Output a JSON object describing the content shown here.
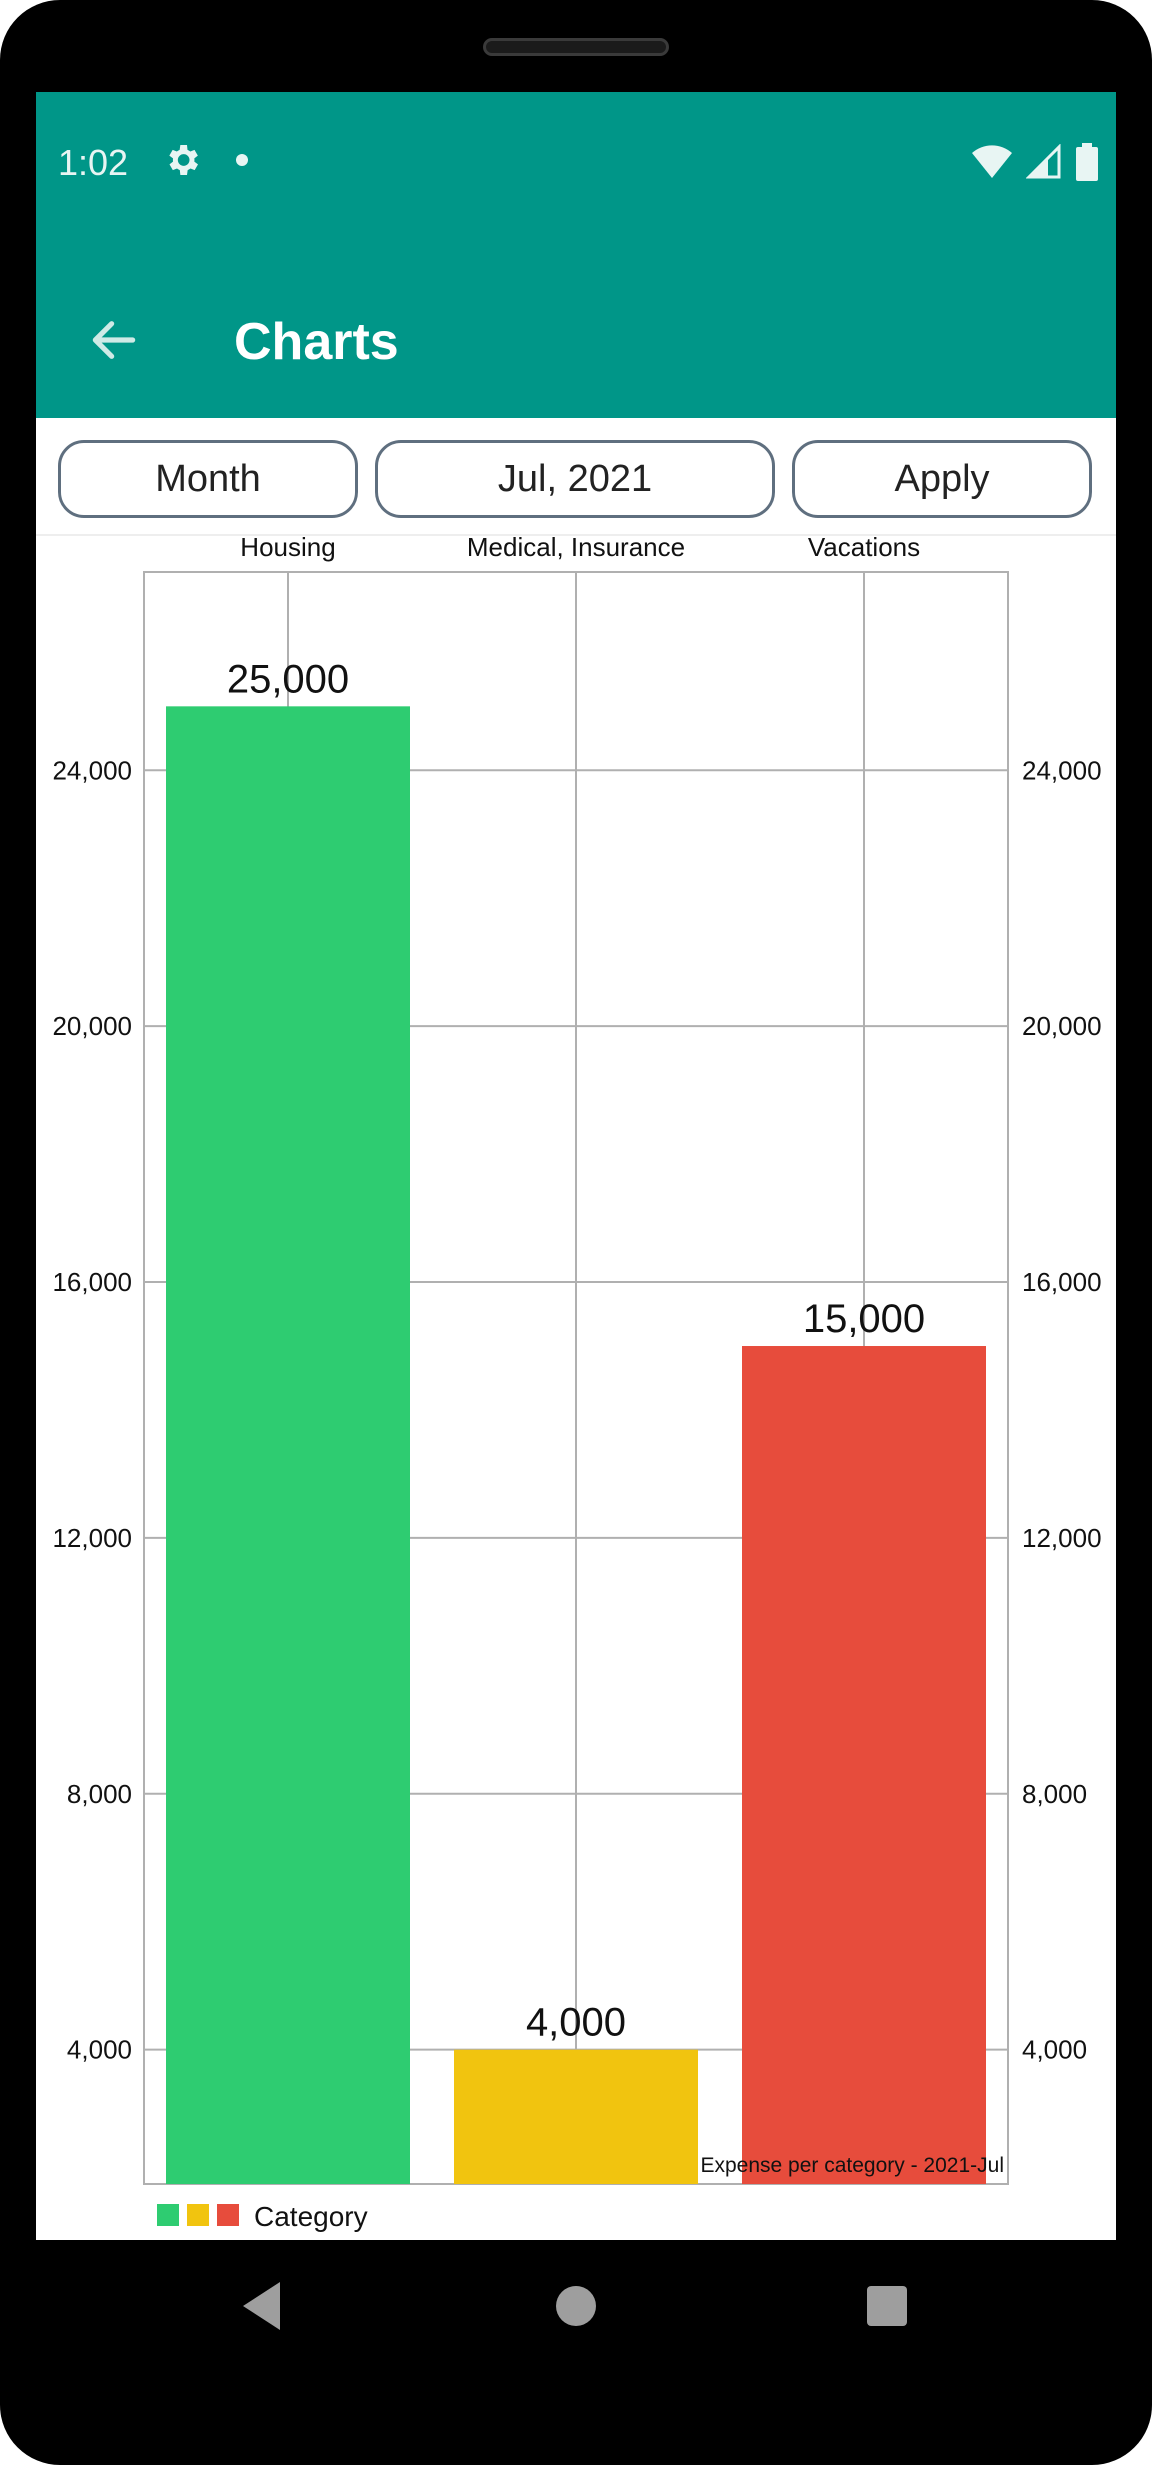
{
  "status_bar": {
    "time": "1:02",
    "icons": [
      "gear-icon",
      "notification-dot-icon",
      "wifi-icon",
      "signal-icon",
      "battery-icon"
    ]
  },
  "app_bar": {
    "title": "Charts",
    "back_icon": "arrow-back-icon",
    "color": "#009688"
  },
  "controls": {
    "period_label": "Month",
    "date_label": "Jul, 2021",
    "apply_label": "Apply"
  },
  "chart_data": {
    "type": "bar",
    "categories": [
      "Housing",
      "Medical, Insurance",
      "Vacations"
    ],
    "series": [
      {
        "name": "Category",
        "values": [
          25000,
          4000,
          15000
        ],
        "colors": [
          "#2ecc71",
          "#f1c40f",
          "#e74c3c"
        ]
      }
    ],
    "data_labels": [
      "25,000",
      "4,000",
      "15,000"
    ],
    "y_ticks": [
      4000,
      8000,
      12000,
      16000,
      20000,
      24000
    ],
    "y_tick_labels": [
      "4,000",
      "8,000",
      "12,000",
      "16,000",
      "20,000",
      "24,000"
    ],
    "ylim": [
      1900,
      27100
    ],
    "caption": "Expense per category - 2021-Jul",
    "legend_label": "Category",
    "legend_position": "bottom-left",
    "grid": true
  },
  "nav_bar": {
    "icons": [
      "back-triangle-icon",
      "home-circle-icon",
      "recents-square-icon"
    ]
  }
}
